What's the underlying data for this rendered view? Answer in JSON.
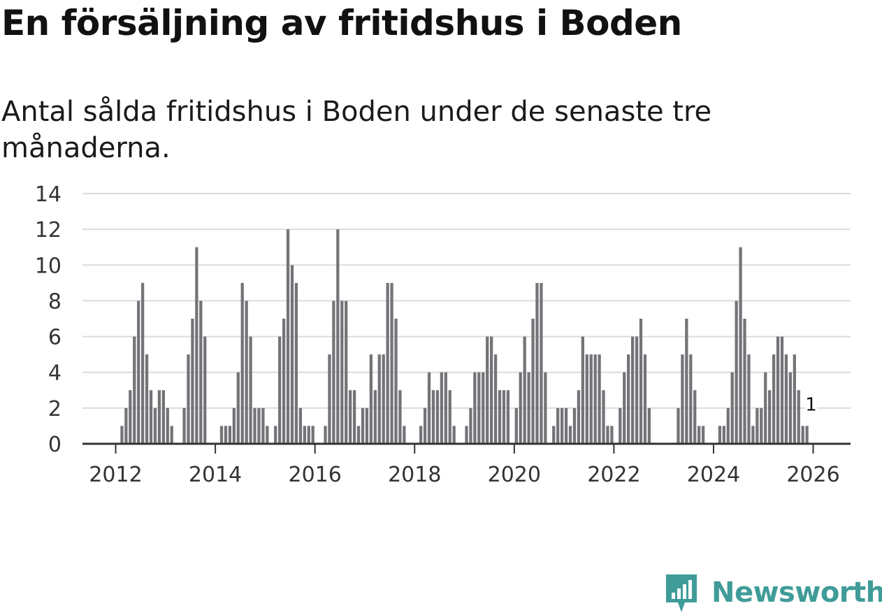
{
  "header": {
    "title": "En försäljning av fritidshus i Boden",
    "subtitle": "Antal sålda fritidshus i Boden under de senaste tre månaderna."
  },
  "brand": {
    "name": "Newsworthy",
    "color": "#3f9c98",
    "icon": "newsworthy-logo-icon"
  },
  "colors": {
    "bar": "#747378",
    "highlight": "#2a9d96",
    "grid": "#dcdcdc",
    "axis": "#333333"
  },
  "chart_data": {
    "type": "bar",
    "title": "En försäljning av fritidshus i Boden",
    "subtitle": "Antal sålda fritidshus i Boden under de senaste tre månaderna.",
    "xlabel": "",
    "ylabel": "",
    "ylim": [
      0,
      14
    ],
    "yticks": [
      0,
      2,
      4,
      6,
      8,
      10,
      12,
      14
    ],
    "xticks": [
      "2012",
      "2014",
      "2016",
      "2018",
      "2020",
      "2022",
      "2024",
      "2026"
    ],
    "xrange": [
      "2011-05",
      "2026-10"
    ],
    "grid": true,
    "start_month": "2012-01",
    "values": [
      0,
      1,
      2,
      3,
      6,
      8,
      9,
      5,
      3,
      2,
      3,
      3,
      2,
      1,
      0,
      0,
      2,
      5,
      7,
      11,
      8,
      6,
      0,
      0,
      0,
      1,
      1,
      1,
      2,
      4,
      9,
      8,
      6,
      2,
      2,
      2,
      1,
      0,
      1,
      6,
      7,
      12,
      10,
      9,
      2,
      1,
      1,
      1,
      0,
      0,
      1,
      5,
      8,
      12,
      8,
      8,
      3,
      3,
      1,
      2,
      2,
      5,
      3,
      5,
      5,
      9,
      9,
      7,
      3,
      1,
      0,
      0,
      0,
      1,
      2,
      4,
      3,
      3,
      4,
      4,
      3,
      1,
      0,
      0,
      1,
      2,
      4,
      4,
      4,
      6,
      6,
      5,
      3,
      3,
      3,
      0,
      2,
      4,
      6,
      4,
      7,
      9,
      9,
      4,
      0,
      1,
      2,
      2,
      2,
      1,
      2,
      3,
      6,
      5,
      5,
      5,
      5,
      3,
      1,
      1,
      0,
      2,
      4,
      5,
      6,
      6,
      7,
      5,
      2,
      0,
      0,
      0,
      0,
      0,
      0,
      2,
      5,
      7,
      5,
      3,
      1,
      1,
      0,
      0,
      0,
      1,
      1,
      2,
      4,
      8,
      11,
      7,
      5,
      1,
      2,
      2,
      4,
      3,
      5,
      6,
      6,
      5,
      4,
      5,
      3,
      1,
      1
    ],
    "highlight": {
      "date": "2025-12",
      "value": 1,
      "label": "1"
    }
  }
}
